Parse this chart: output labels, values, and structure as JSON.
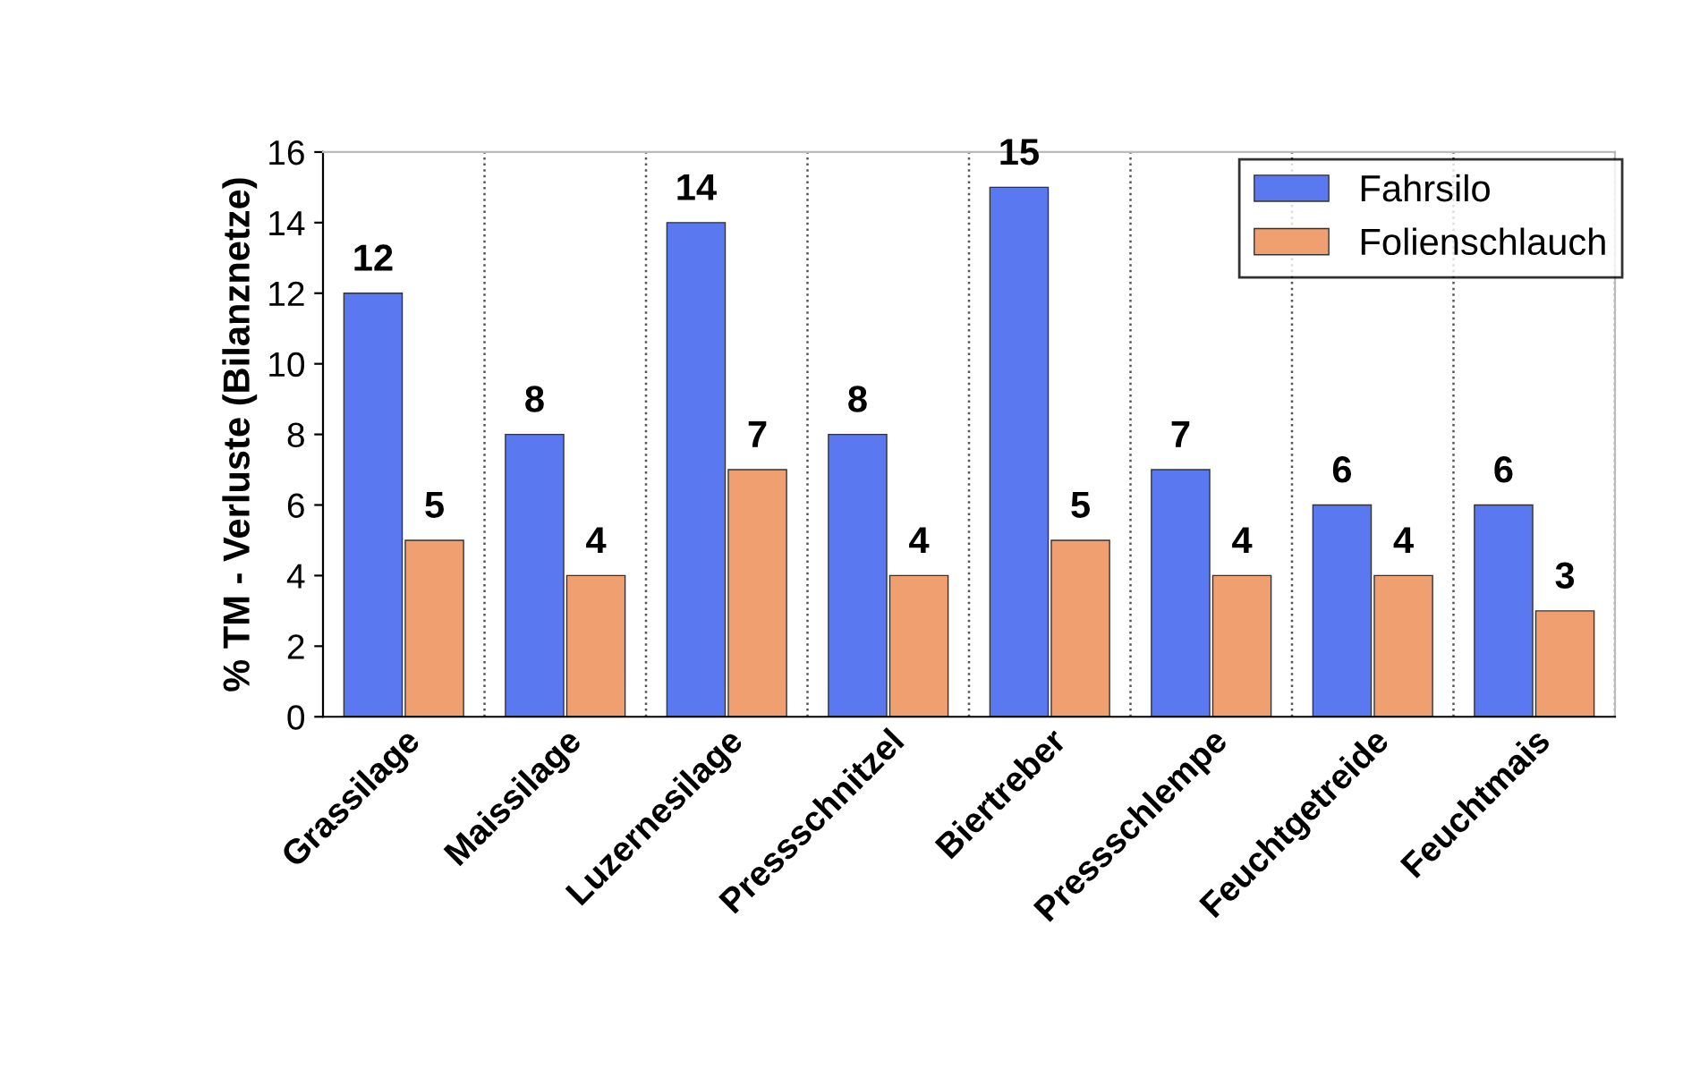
{
  "chart_data": {
    "type": "bar",
    "ylabel": "% TM - Verluste (Bilanznetze)",
    "categories": [
      "Grassilage",
      "Maissilage",
      "Luzernesilage",
      "Pressschnitzel",
      "Biertreber",
      "Pressschlempe",
      "Feuchtgetreide",
      "Feuchtmais"
    ],
    "series": [
      {
        "name": "Fahrsilo",
        "color": "#5a78f0",
        "values": [
          12,
          8,
          14,
          8,
          15,
          7,
          6,
          6
        ]
      },
      {
        "name": "Folienschlauch",
        "color": "#f0a070",
        "values": [
          5,
          4,
          7,
          4,
          5,
          4,
          4,
          3
        ]
      }
    ],
    "ylim": [
      0,
      16
    ],
    "yticks": [
      0,
      2,
      4,
      6,
      8,
      10,
      12,
      14,
      16
    ],
    "data_labels": true,
    "grid": "x",
    "legend": "top right"
  }
}
